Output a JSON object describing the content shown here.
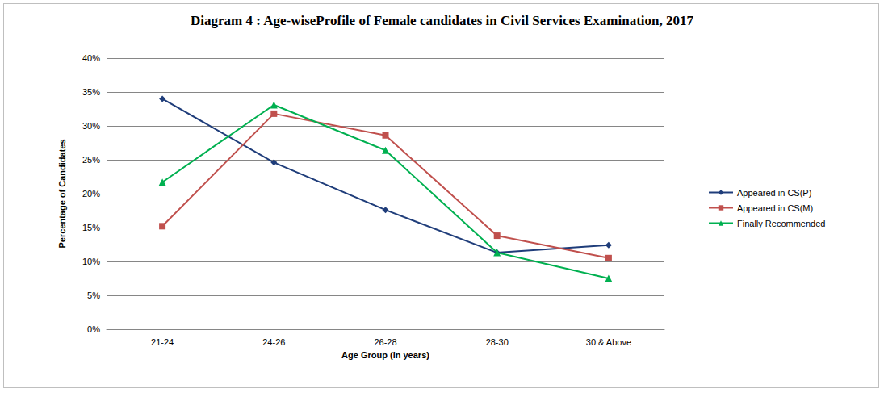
{
  "chart_data": {
    "type": "line",
    "title": "Diagram 4 : Age-wiseProfile of Female candidates in Civil Services Examination, 2017",
    "x_label": "Age Group (in years)",
    "y_label": "Percentage of Candidates",
    "categories": [
      "21-24",
      "24-26",
      "26-28",
      "28-30",
      "30 & Above"
    ],
    "series": [
      {
        "name": "Appeared in CS(P)",
        "color": "#1f3d7a",
        "marker": "diamond",
        "values": [
          34.0,
          24.6,
          17.6,
          11.3,
          12.4
        ]
      },
      {
        "name": "Appeared in CS(M)",
        "color": "#c0504d",
        "marker": "square",
        "values": [
          15.2,
          31.8,
          28.6,
          13.8,
          10.5
        ]
      },
      {
        "name": "Finally Recommended",
        "color": "#00b050",
        "marker": "triangle",
        "values": [
          21.7,
          33.1,
          26.4,
          11.3,
          7.5
        ]
      }
    ],
    "ylim": [
      0,
      40
    ],
    "yticks": [
      {
        "value": 0,
        "label": "0%"
      },
      {
        "value": 5,
        "label": "5%"
      },
      {
        "value": 10,
        "label": "10%"
      },
      {
        "value": 15,
        "label": "15%"
      },
      {
        "value": 20,
        "label": "20%"
      },
      {
        "value": 25,
        "label": "25%"
      },
      {
        "value": 30,
        "label": "30%"
      },
      {
        "value": 35,
        "label": "35%"
      },
      {
        "value": 40,
        "label": "40%"
      }
    ],
    "grid": true,
    "legend": "right"
  }
}
